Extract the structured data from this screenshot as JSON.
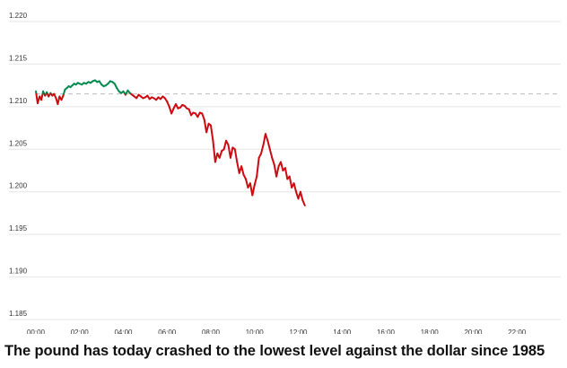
{
  "caption": "The pound has today crashed to the lowest level against the dollar since 1985",
  "colors": {
    "up": "#008a4e",
    "down": "#cc0a11",
    "grid": "#e6e6e6",
    "reference": "#bdbdbd",
    "axis_text": "#333333",
    "caption": "#111111"
  },
  "chart_data": {
    "type": "line",
    "title": "",
    "xlabel": "",
    "ylabel": "",
    "x_unit": "hours",
    "xlim": [
      0,
      24
    ],
    "ylim": [
      1.185,
      1.22
    ],
    "reference_level": 1.2115,
    "grid": true,
    "xticks": [
      0,
      2,
      4,
      6,
      8,
      10,
      12,
      14,
      16,
      18,
      20,
      22
    ],
    "xtick_labels": [
      "00:00",
      "02:00",
      "04:00",
      "06:00",
      "08:00",
      "10:00",
      "12:00",
      "14:00",
      "16:00",
      "18:00",
      "20:00",
      "22:00"
    ],
    "yticks": [
      1.185,
      1.19,
      1.195,
      1.2,
      1.205,
      1.21,
      1.215,
      1.22
    ],
    "ytick_labels": [
      "1.185",
      "1.190",
      "1.195",
      "1.200",
      "1.205",
      "1.210",
      "1.215",
      "1.220"
    ],
    "series": [
      {
        "color_note": "green above previous close, red below",
        "x": [
          0.0,
          0.08,
          0.17,
          0.25,
          0.33,
          0.42,
          0.5,
          0.58,
          0.67,
          0.75,
          0.83,
          0.92,
          1.0,
          1.08,
          1.17,
          1.25,
          1.33,
          1.42,
          1.5,
          1.58,
          1.67,
          1.75,
          1.83,
          1.92,
          2.0,
          2.1,
          2.2,
          2.3,
          2.4,
          2.5,
          2.6,
          2.7,
          2.8,
          2.9,
          3.0,
          3.1,
          3.2,
          3.3,
          3.4,
          3.5,
          3.6,
          3.7,
          3.8,
          3.9,
          4.0,
          4.1,
          4.2,
          4.3,
          4.4,
          4.5,
          4.6,
          4.7,
          4.8,
          4.9,
          5.0,
          5.1,
          5.2,
          5.3,
          5.4,
          5.5,
          5.6,
          5.7,
          5.8,
          5.9,
          6.0,
          6.1,
          6.2,
          6.3,
          6.4,
          6.5,
          6.6,
          6.7,
          6.8,
          6.9,
          7.0,
          7.1,
          7.2,
          7.3,
          7.4,
          7.5,
          7.6,
          7.7,
          7.8,
          7.9,
          8.0,
          8.1,
          8.2,
          8.3,
          8.4,
          8.5,
          8.6,
          8.7,
          8.8,
          8.9,
          9.0,
          9.1,
          9.2,
          9.3,
          9.4,
          9.5,
          9.6,
          9.7,
          9.8,
          9.9,
          10.0,
          10.1,
          10.2,
          10.3,
          10.4,
          10.5,
          10.6,
          10.7,
          10.8,
          10.9,
          11.0,
          11.1,
          11.2,
          11.3,
          11.4,
          11.5,
          11.6,
          11.7,
          11.8,
          11.9,
          12.0,
          12.1,
          12.2,
          12.3
        ],
        "y": [
          1.2118,
          1.2104,
          1.2112,
          1.2108,
          1.2118,
          1.2113,
          1.2117,
          1.2112,
          1.2116,
          1.2113,
          1.2115,
          1.211,
          1.2103,
          1.2112,
          1.2108,
          1.2113,
          1.212,
          1.2122,
          1.2124,
          1.2123,
          1.2125,
          1.2127,
          1.2126,
          1.2128,
          1.2127,
          1.2126,
          1.2128,
          1.2127,
          1.2129,
          1.2128,
          1.213,
          1.2131,
          1.2129,
          1.213,
          1.2126,
          1.2124,
          1.2125,
          1.2127,
          1.213,
          1.2129,
          1.2127,
          1.2122,
          1.2118,
          1.2116,
          1.2118,
          1.2114,
          1.2119,
          1.2116,
          1.2114,
          1.2112,
          1.211,
          1.2114,
          1.2112,
          1.211,
          1.2111,
          1.2113,
          1.2109,
          1.2111,
          1.211,
          1.2108,
          1.2111,
          1.2109,
          1.2112,
          1.211,
          1.2106,
          1.21,
          1.2092,
          1.2098,
          1.2103,
          1.2098,
          1.2099,
          1.2102,
          1.2101,
          1.2098,
          1.2097,
          1.209,
          1.2093,
          1.2092,
          1.2088,
          1.2093,
          1.2092,
          1.2085,
          1.207,
          1.208,
          1.2078,
          1.206,
          1.2035,
          1.2045,
          1.204,
          1.2048,
          1.205,
          1.206,
          1.2055,
          1.204,
          1.2052,
          1.205,
          1.2035,
          1.2022,
          1.203,
          1.202,
          1.2015,
          1.2005,
          1.201,
          1.1996,
          1.2008,
          1.2018,
          1.204,
          1.2045,
          1.2055,
          1.2068,
          1.206,
          1.205,
          1.204,
          1.2032,
          1.2018,
          1.203,
          1.2035,
          1.2025,
          1.2028,
          1.2015,
          1.2018,
          1.2005,
          1.201,
          1.2,
          1.1992,
          1.2,
          1.199,
          1.1984
        ]
      }
    ]
  }
}
